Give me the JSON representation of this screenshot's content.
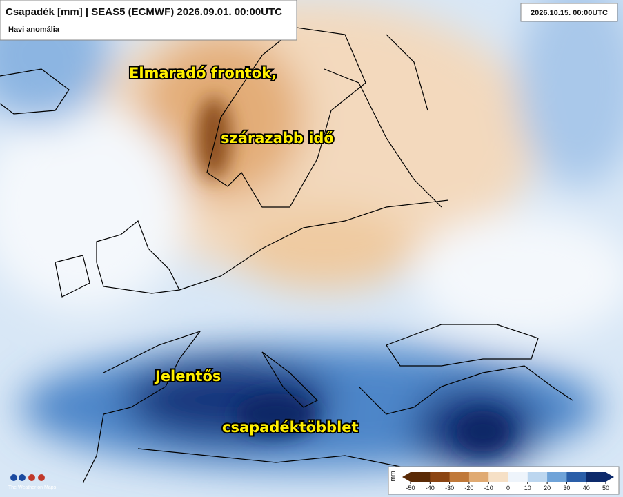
{
  "header": {
    "title": "Csapadék [mm] | SEAS5 (ECMWF) 2026.09.01. 00:00UTC",
    "subtitle": "Havi anomália"
  },
  "valid_time": "2026.10.15. 00:00UTC",
  "annotations": [
    "Elmaradó frontok,",
    "szárazabb idő",
    "Jelentős",
    "csapadéktöbblet"
  ],
  "colorbar": {
    "label": "mm",
    "ticks": [
      -50,
      -40,
      -30,
      -20,
      -10,
      0,
      10,
      20,
      30,
      40,
      50
    ],
    "colors": [
      "#5a2a06",
      "#8b4513",
      "#c0793a",
      "#e0aa72",
      "#f6e0c6",
      "#eef4fb",
      "#bcd6ef",
      "#6fa3d8",
      "#2a5ea8",
      "#0d2a6b"
    ]
  },
  "logo": {
    "text": "The Weather on Maps"
  }
}
